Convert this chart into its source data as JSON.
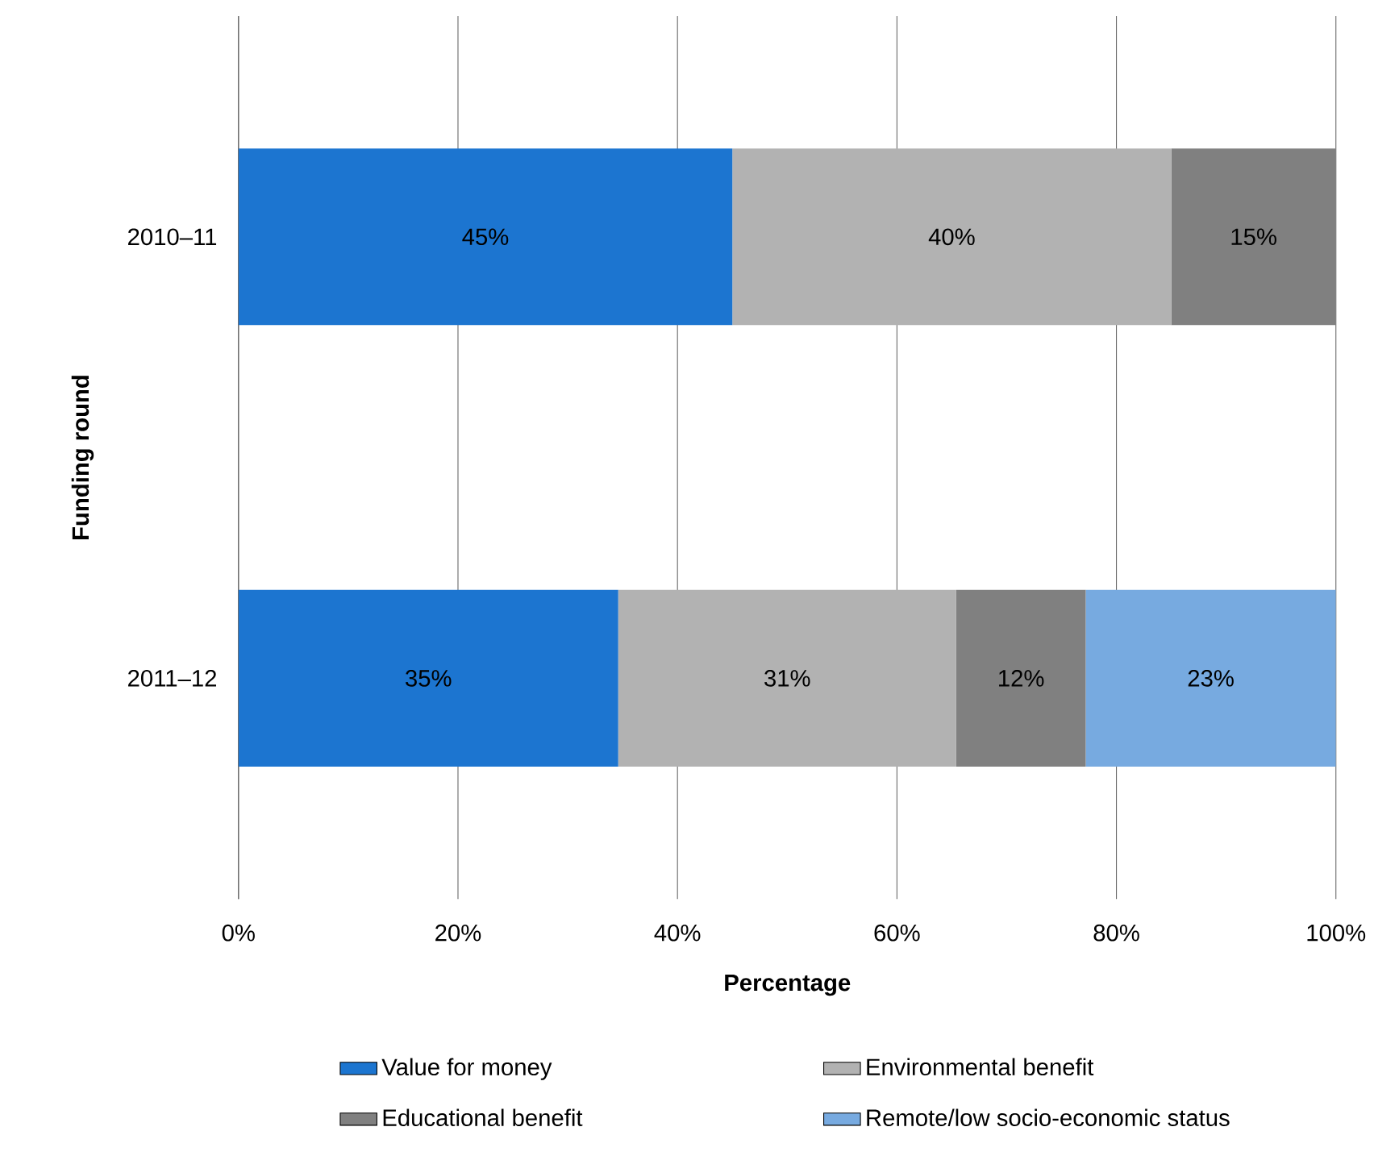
{
  "chart_data": {
    "type": "bar",
    "orientation": "horizontal",
    "stacked": true,
    "xlabel": "Percentage",
    "ylabel": "Funding round",
    "categories": [
      "2010–11",
      "2011–12"
    ],
    "series": [
      {
        "name": "Value for money",
        "color": "#1c75d0",
        "values": [
          45,
          34.6
        ],
        "value_labels": [
          "45%",
          "35%"
        ]
      },
      {
        "name": "Environmental benefit",
        "color": "#b2b2b2",
        "values": [
          40,
          30.8
        ],
        "value_labels": [
          "40%",
          "31%"
        ]
      },
      {
        "name": "Educational benefit",
        "color": "#808080",
        "values": [
          15,
          11.8
        ],
        "value_labels": [
          "15%",
          "12%"
        ]
      },
      {
        "name": "Remote/low socio-economic status",
        "color": "#77aae0",
        "values": [
          null,
          22.8
        ],
        "value_labels": [
          null,
          "23%"
        ]
      }
    ],
    "xlim": [
      0,
      100
    ],
    "xticks": [
      {
        "value": 0,
        "label": "0%"
      },
      {
        "value": 20,
        "label": "20%"
      },
      {
        "value": 40,
        "label": "40%"
      },
      {
        "value": 60,
        "label": "60%"
      },
      {
        "value": 80,
        "label": "80%"
      },
      {
        "value": 100,
        "label": "100%"
      }
    ],
    "grid": "x",
    "legend": "bottom"
  }
}
